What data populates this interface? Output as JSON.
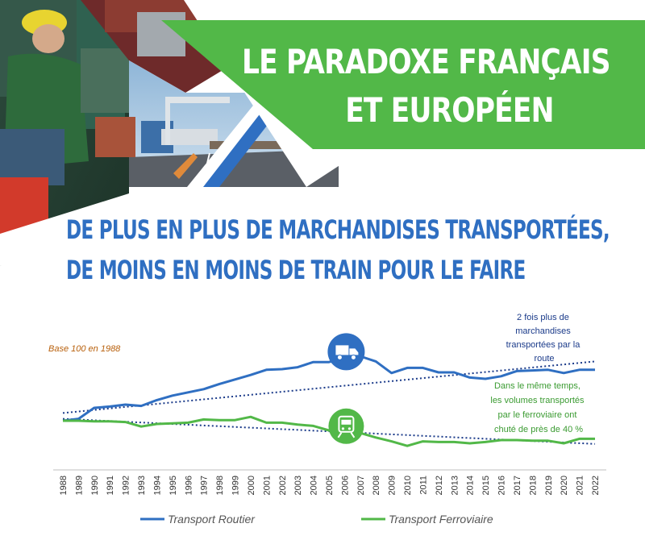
{
  "banner": {
    "title_line1": "LE PARADOXE FRANÇAIS",
    "title_line2": "ET EUROPÉEN"
  },
  "headline": {
    "line1": "DE PLUS EN PLUS DE MARCHANDISES TRANSPORTÉES,",
    "line2": "DE MOINS EN MOINS DE TRAIN POUR LE FAIRE"
  },
  "colors": {
    "green": "#52b848",
    "blue": "#2f6fc2",
    "dark_blue": "#1b3b8a",
    "orange_note": "#b8600c"
  },
  "chart_data": {
    "type": "line",
    "x": [
      "1988",
      "1989",
      "1990",
      "1991",
      "1992",
      "1993",
      "1994",
      "1995",
      "1996",
      "1997",
      "1998",
      "1999",
      "2000",
      "2001",
      "2002",
      "2003",
      "2004",
      "2005",
      "2006",
      "2007",
      "2008",
      "2009",
      "2010",
      "2011",
      "2012",
      "2013",
      "2014",
      "2015",
      "2016",
      "2017",
      "2018",
      "2019",
      "2020",
      "2021",
      "2022"
    ],
    "series": [
      {
        "name": "Transport Routier",
        "color": "#2f6fc2",
        "values": [
          100,
          103,
          120,
          122,
          125,
          123,
          132,
          139,
          144,
          149,
          157,
          164,
          171,
          179,
          180,
          183,
          191,
          191,
          197,
          200,
          192,
          174,
          182,
          182,
          175,
          175,
          167,
          165,
          169,
          177,
          178,
          179,
          174,
          179,
          179
        ],
        "trend": [
          112,
          192
        ],
        "icon": "truck-icon"
      },
      {
        "name": "Transport Ferroviaire",
        "color": "#52b848",
        "values": [
          100,
          100,
          99,
          99,
          98,
          91,
          95,
          96,
          97,
          102,
          101,
          101,
          106,
          97,
          97,
          94,
          92,
          85,
          84,
          81,
          74,
          68,
          61,
          68,
          67,
          67,
          65,
          67,
          70,
          70,
          69,
          69,
          65,
          72,
          72
        ],
        "trend": [
          103,
          64
        ],
        "icon": "train-icon"
      }
    ],
    "annotations": {
      "base_note": "Base 100 en 1988",
      "road_note": [
        "2 fois plus de",
        "marchandises",
        "transportées par la",
        "route"
      ],
      "rail_note": [
        "Dans le même temps,",
        "les volumes transportés",
        "par le ferroviaire ont",
        "chuté de près de 40 %"
      ]
    }
  }
}
